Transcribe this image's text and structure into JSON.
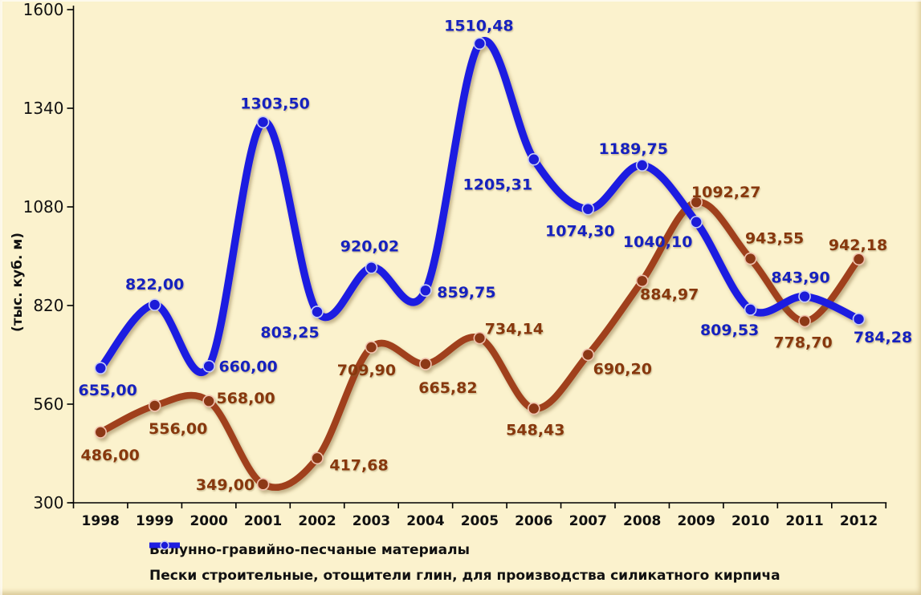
{
  "chart_data": {
    "type": "line",
    "title": "",
    "xlabel": "",
    "ylabel": "(тыс. куб. м)",
    "x_categories": [
      "1998",
      "1999",
      "2000",
      "2001",
      "2002",
      "2003",
      "2004",
      "2005",
      "2006",
      "2007",
      "2008",
      "2009",
      "2010",
      "2011",
      "2012"
    ],
    "y_ticks": [
      300,
      560,
      820,
      1080,
      1340,
      1600
    ],
    "y_tick_labels": [
      "300",
      "560",
      "820",
      "1080",
      "1340",
      "1600"
    ],
    "ylim": [
      300,
      1600
    ],
    "grid": "off",
    "legend_position": "bottom-left",
    "smoothed": true,
    "background_color": "#FBF2CD",
    "series": [
      {
        "name": "Валунно-гравийно-песчаные материалы",
        "line_color": "#A0411E",
        "marker_color": "#8C3714",
        "marker_ring_color": "#F0C2AE",
        "label_color": "#87370F",
        "values": [
          486.0,
          556.0,
          568.0,
          349.0,
          417.68,
          709.9,
          665.82,
          734.14,
          548.43,
          690.2,
          884.97,
          1092.27,
          943.55,
          778.7,
          942.18
        ],
        "labels": [
          "486,00",
          "556,00",
          "568,00",
          "349,00",
          "417,68",
          "709,90",
          "665,82",
          "734,14",
          "548,43",
          "690,20",
          "884,97",
          "1092,27",
          "943,55",
          "778,70",
          "942,18"
        ],
        "label_offsets": [
          [
            12,
            28
          ],
          [
            29,
            28
          ],
          [
            46,
            -4
          ],
          [
            -47,
            0
          ],
          [
            52,
            8
          ],
          [
            -6,
            28
          ],
          [
            28,
            29
          ],
          [
            43,
            -12
          ],
          [
            2,
            26
          ],
          [
            43,
            17
          ],
          [
            34,
            16
          ],
          [
            37,
            -13
          ],
          [
            30,
            -26
          ],
          [
            -2,
            26
          ],
          [
            -1,
            -18
          ]
        ]
      },
      {
        "name": "Пески строительные, отощители глин, для производства силикатного кирпича",
        "line_color": "#1E1EE1",
        "marker_color": "#1B1BD8",
        "marker_ring_color": "#C9CDF2",
        "label_color": "#1923BE",
        "values": [
          655.0,
          822.0,
          660.0,
          1303.5,
          803.25,
          920.02,
          859.75,
          1510.48,
          1205.31,
          1074.3,
          1189.75,
          1040.1,
          809.53,
          843.9,
          784.28
        ],
        "labels": [
          "655,00",
          "822,00",
          "660,00",
          "1303,50",
          "803,25",
          "920,02",
          "859,75",
          "1510,48",
          "1205,31",
          "1074,30",
          "1189,75",
          "1040,10",
          "809,53",
          "843,90",
          "784,28"
        ],
        "label_offsets": [
          [
            9,
            27
          ],
          [
            0,
            -26
          ],
          [
            49,
            0
          ],
          [
            15,
            -24
          ],
          [
            -34,
            25
          ],
          [
            -2,
            -27
          ],
          [
            51,
            2
          ],
          [
            -1,
            -23
          ],
          [
            -45,
            31
          ],
          [
            -10,
            27
          ],
          [
            -11,
            -21
          ],
          [
            -48,
            24
          ],
          [
            -26,
            25
          ],
          [
            -5,
            -24
          ],
          [
            30,
            22
          ]
        ]
      }
    ]
  },
  "axis": {
    "color": "#000000"
  }
}
